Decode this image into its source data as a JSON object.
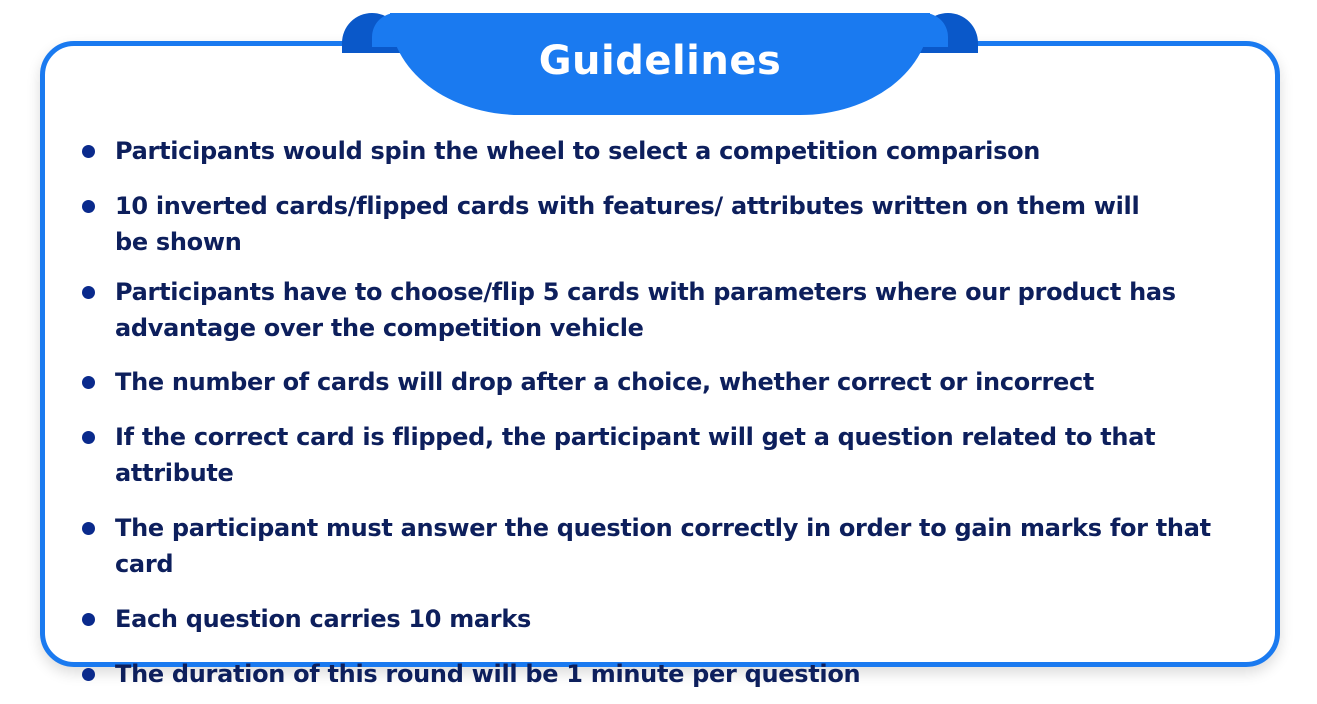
{
  "header": {
    "title": "Guidelines"
  },
  "colors": {
    "accent": "#1a7af0",
    "accent_dark": "#0a58c9",
    "text": "#0d1f5c",
    "bullet": "#0a2a8c"
  },
  "guidelines": [
    "Participants would spin the wheel to select a competition comparison",
    "10 inverted cards/flipped cards with features/ attributes written on them will be shown",
    "Participants have to choose/flip 5 cards with parameters where our product has advantage over the competition vehicle",
    "The number of cards will drop after a choice, whether correct or incorrect",
    "If the correct card is flipped, the participant will get a question related to that attribute",
    "The participant must answer the question correctly in order to gain marks for that card",
    "Each question carries 10 marks",
    "The duration of this round will be 1 minute per question"
  ]
}
